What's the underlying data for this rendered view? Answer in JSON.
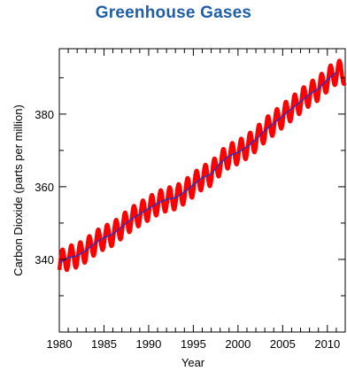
{
  "chart_data": {
    "type": "line",
    "title": "Greenhouse Gases",
    "xlabel": "Year",
    "ylabel": "Carbon Dioxide (parts per million)",
    "xlim": [
      1980,
      2012
    ],
    "ylim": [
      320,
      398
    ],
    "x_ticks": [
      "1980",
      "1985",
      "1990",
      "1995",
      "2000",
      "2005",
      "2010"
    ],
    "y_ticks": [
      "340",
      "360",
      "380"
    ],
    "grid": false,
    "colors": {
      "monthly": "#ff0000",
      "trend": "#1a33cc",
      "title": "#1f5fa8"
    },
    "series": [
      {
        "style": "trend",
        "x": [
          1980,
          1981,
          1982,
          1983,
          1984,
          1985,
          1986,
          1987,
          1988,
          1989,
          1990,
          1991,
          1992,
          1993,
          1994,
          1995,
          1996,
          1997,
          1998,
          1999,
          2000,
          2001,
          2002,
          2003,
          2004,
          2005,
          2006,
          2007,
          2008,
          2009,
          2010,
          2011
        ],
        "values": [
          339,
          340.5,
          341,
          342.5,
          344.5,
          346,
          347,
          349,
          351,
          352.5,
          354,
          355.5,
          356.5,
          357,
          358.5,
          360.5,
          362.5,
          363.5,
          366.5,
          368.5,
          369.5,
          371,
          373,
          375.5,
          377.5,
          379.5,
          381.5,
          383.5,
          385.5,
          387,
          389.5,
          391.5
        ]
      },
      {
        "style": "monthly",
        "seasonal_amplitude": 3.2,
        "x": [
          1980,
          1981,
          1982,
          1983,
          1984,
          1985,
          1986,
          1987,
          1988,
          1989,
          1990,
          1991,
          1992,
          1993,
          1994,
          1995,
          1996,
          1997,
          1998,
          1999,
          2000,
          2001,
          2002,
          2003,
          2004,
          2005,
          2006,
          2007,
          2008,
          2009,
          2010,
          2011
        ],
        "values": [
          339,
          340.5,
          341,
          342.5,
          344.5,
          346,
          347,
          349,
          351,
          352.5,
          354,
          355.5,
          356.5,
          357,
          358.5,
          360.5,
          362.5,
          363.5,
          366.5,
          368.5,
          369.5,
          371,
          373,
          375.5,
          377.5,
          379.5,
          381.5,
          383.5,
          385.5,
          387,
          389.5,
          391.5
        ]
      }
    ]
  }
}
